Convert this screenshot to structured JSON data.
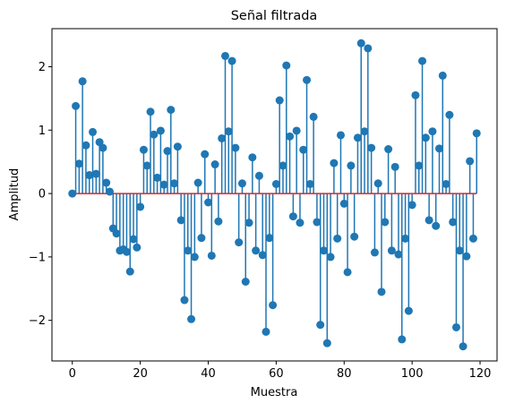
{
  "chart_data": {
    "type": "stem",
    "title": "Señal filtrada",
    "xlabel": "Muestra",
    "ylabel": "Amplitud",
    "xlim": [
      -6,
      125
    ],
    "ylim": [
      -2.64,
      2.6
    ],
    "xticks": [
      0,
      20,
      40,
      60,
      80,
      100,
      120
    ],
    "yticks": [
      -2,
      -1,
      0,
      1,
      2
    ],
    "grid": false,
    "baseline": 0,
    "colors": {
      "stem": "#1f77b4",
      "marker": "#1f77b4",
      "baseline": "#d62728",
      "axes": "#000000"
    },
    "x": [
      0,
      1,
      2,
      3,
      4,
      5,
      6,
      7,
      8,
      9,
      10,
      11,
      12,
      13,
      14,
      15,
      16,
      17,
      18,
      19,
      20,
      21,
      22,
      23,
      24,
      25,
      26,
      27,
      28,
      29,
      30,
      31,
      32,
      33,
      34,
      35,
      36,
      37,
      38,
      39,
      40,
      41,
      42,
      43,
      44,
      45,
      46,
      47,
      48,
      49,
      50,
      51,
      52,
      53,
      54,
      55,
      56,
      57,
      58,
      59,
      60,
      61,
      62,
      63,
      64,
      65,
      66,
      67,
      68,
      69,
      70,
      71,
      72,
      73,
      74,
      75,
      76,
      77,
      78,
      79,
      80,
      81,
      82,
      83,
      84,
      85,
      86,
      87,
      88,
      89,
      90,
      91,
      92,
      93,
      94,
      95,
      96,
      97,
      98,
      99,
      100,
      101,
      102,
      103,
      104,
      105,
      106,
      107,
      108,
      109,
      110,
      111,
      112,
      113,
      114,
      115,
      116,
      117,
      118,
      119
    ],
    "values": [
      0.0,
      1.38,
      0.47,
      1.77,
      0.76,
      0.29,
      0.97,
      0.31,
      0.81,
      0.72,
      0.17,
      0.03,
      -0.55,
      -0.63,
      -0.9,
      -0.88,
      -0.92,
      -1.23,
      -0.72,
      -0.85,
      -0.21,
      0.69,
      0.44,
      1.29,
      0.93,
      0.25,
      0.99,
      0.14,
      0.67,
      1.32,
      0.16,
      0.74,
      -0.42,
      -1.68,
      -0.9,
      -1.98,
      -1.0,
      0.17,
      -0.7,
      0.62,
      -0.14,
      -0.98,
      0.46,
      -0.44,
      0.87,
      2.17,
      0.98,
      2.09,
      0.72,
      -0.77,
      0.16,
      -1.39,
      -0.46,
      0.57,
      -0.9,
      0.28,
      -0.97,
      -2.18,
      -0.7,
      -1.76,
      0.15,
      1.47,
      0.44,
      2.02,
      0.9,
      -0.36,
      0.99,
      -0.46,
      0.69,
      1.79,
      0.15,
      1.21,
      -0.45,
      -2.07,
      -0.9,
      -2.36,
      -1.0,
      0.48,
      -0.71,
      0.92,
      -0.16,
      -1.24,
      0.44,
      -0.68,
      0.88,
      2.37,
      0.98,
      2.29,
      0.72,
      -0.93,
      0.16,
      -1.55,
      -0.45,
      0.7,
      -0.9,
      0.42,
      -0.96,
      -2.3,
      -0.71,
      -1.85,
      -0.18,
      1.55,
      0.44,
      2.09,
      0.88,
      -0.42,
      0.98,
      -0.51,
      0.71,
      1.86,
      0.15,
      1.24,
      -0.45,
      -2.11,
      -0.9,
      -2.41,
      -0.99,
      0.51,
      -0.71,
      0.95
    ]
  }
}
